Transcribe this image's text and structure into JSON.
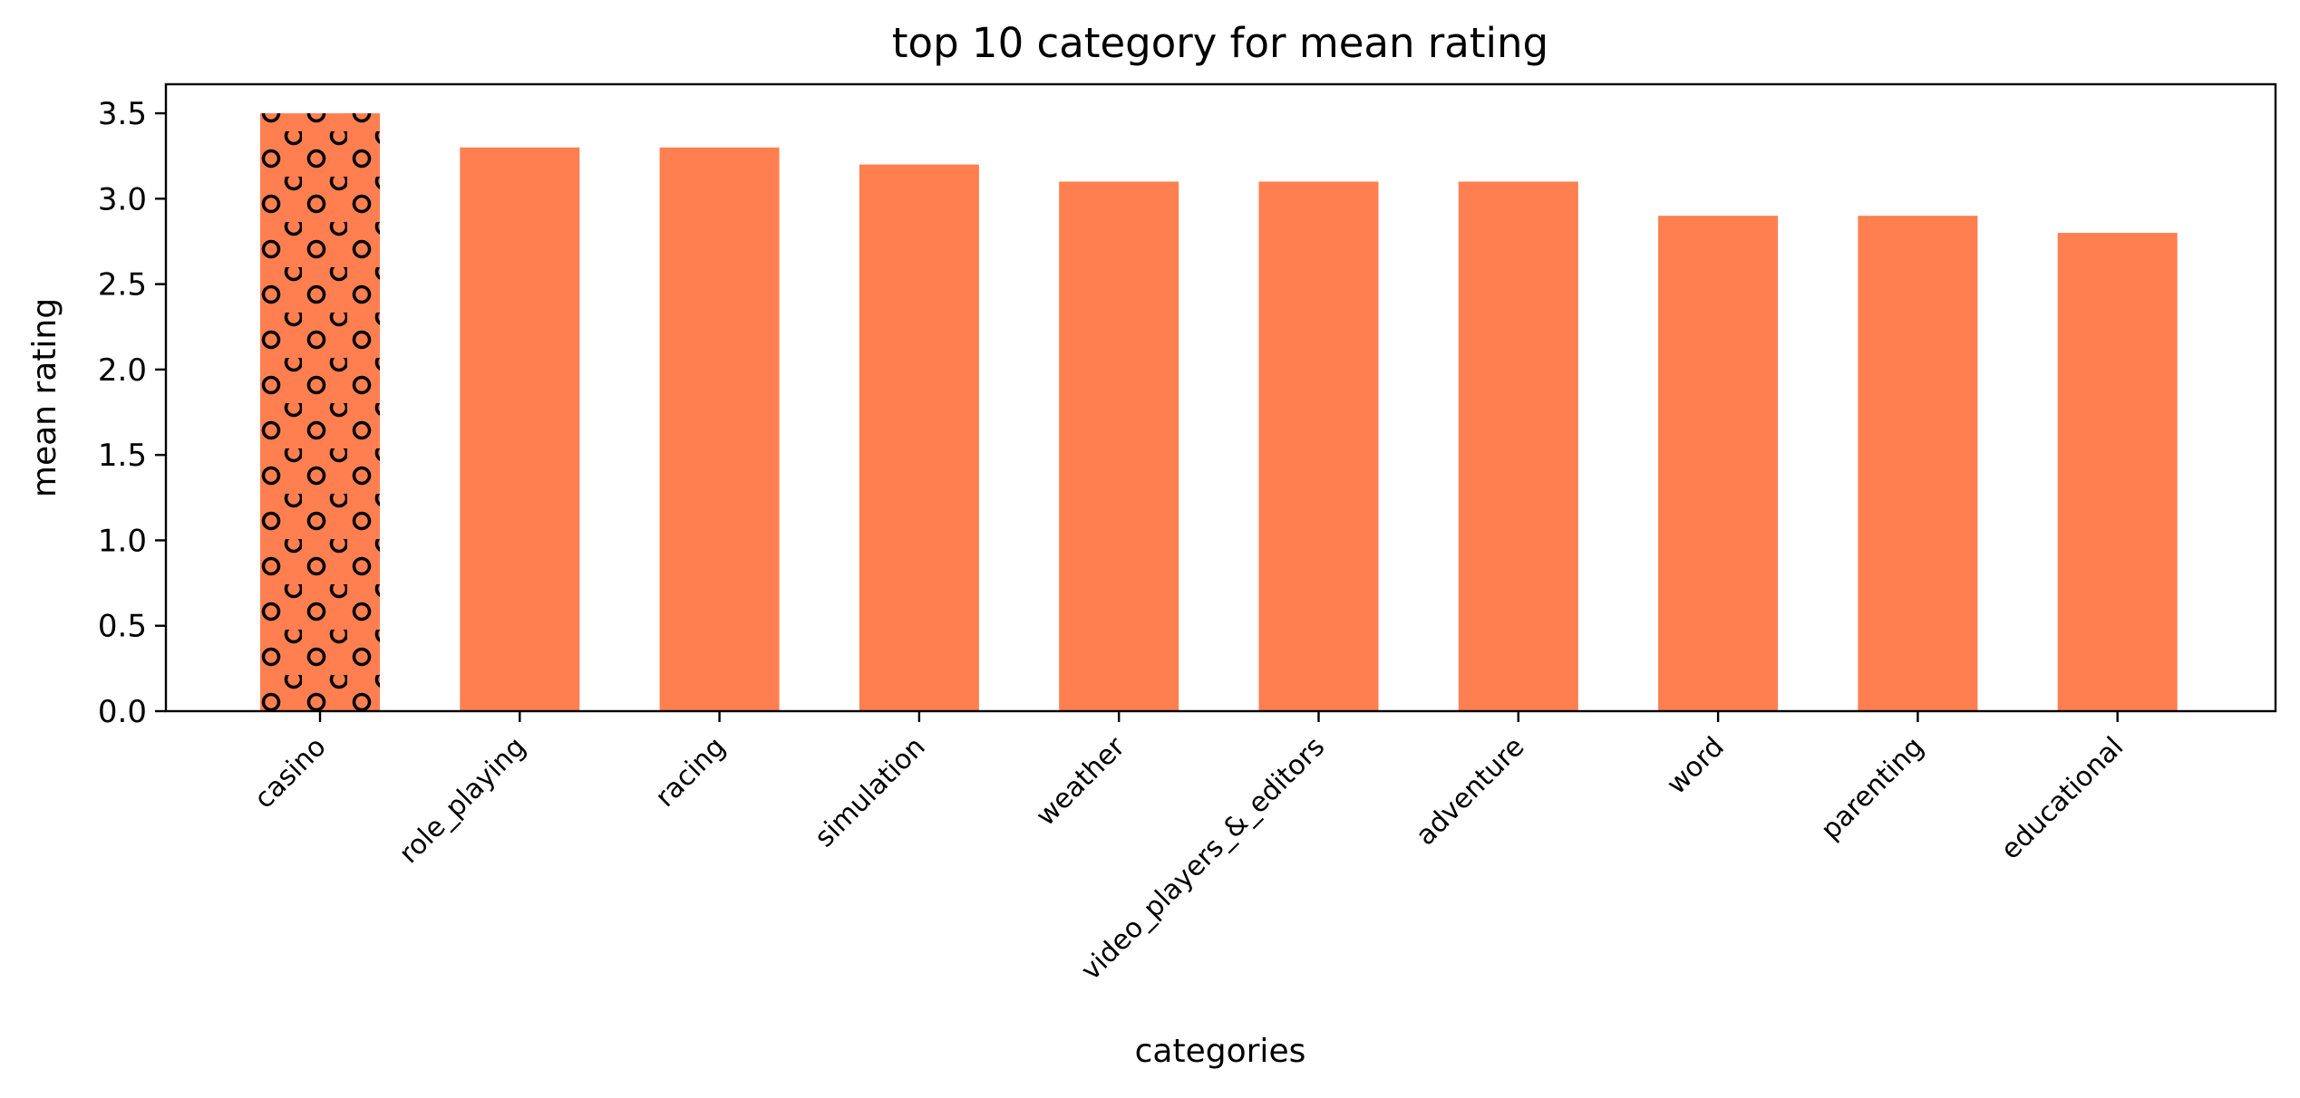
{
  "chart_data": {
    "type": "bar",
    "title": "top 10 category for mean rating",
    "xlabel": "categories",
    "ylabel": "mean rating",
    "categories": [
      "casino",
      "role_playing",
      "racing",
      "simulation",
      "weather",
      "video_players_&_editors",
      "adventure",
      "word",
      "parenting",
      "educational"
    ],
    "values": [
      3.5,
      3.3,
      3.3,
      3.2,
      3.1,
      3.1,
      3.1,
      2.9,
      2.9,
      2.8
    ],
    "hatched_bars": [
      "casino"
    ],
    "ylim": [
      0,
      3.67
    ],
    "yticks": [
      0.0,
      0.5,
      1.0,
      1.5,
      2.0,
      2.5,
      3.0,
      3.5
    ],
    "ytick_labels": [
      "0.0",
      "0.5",
      "1.0",
      "1.5",
      "2.0",
      "2.5",
      "3.0",
      "3.5"
    ],
    "grid": false,
    "legend": "none",
    "bar_color": "#ff7f50",
    "hatch_color": "#000000"
  }
}
